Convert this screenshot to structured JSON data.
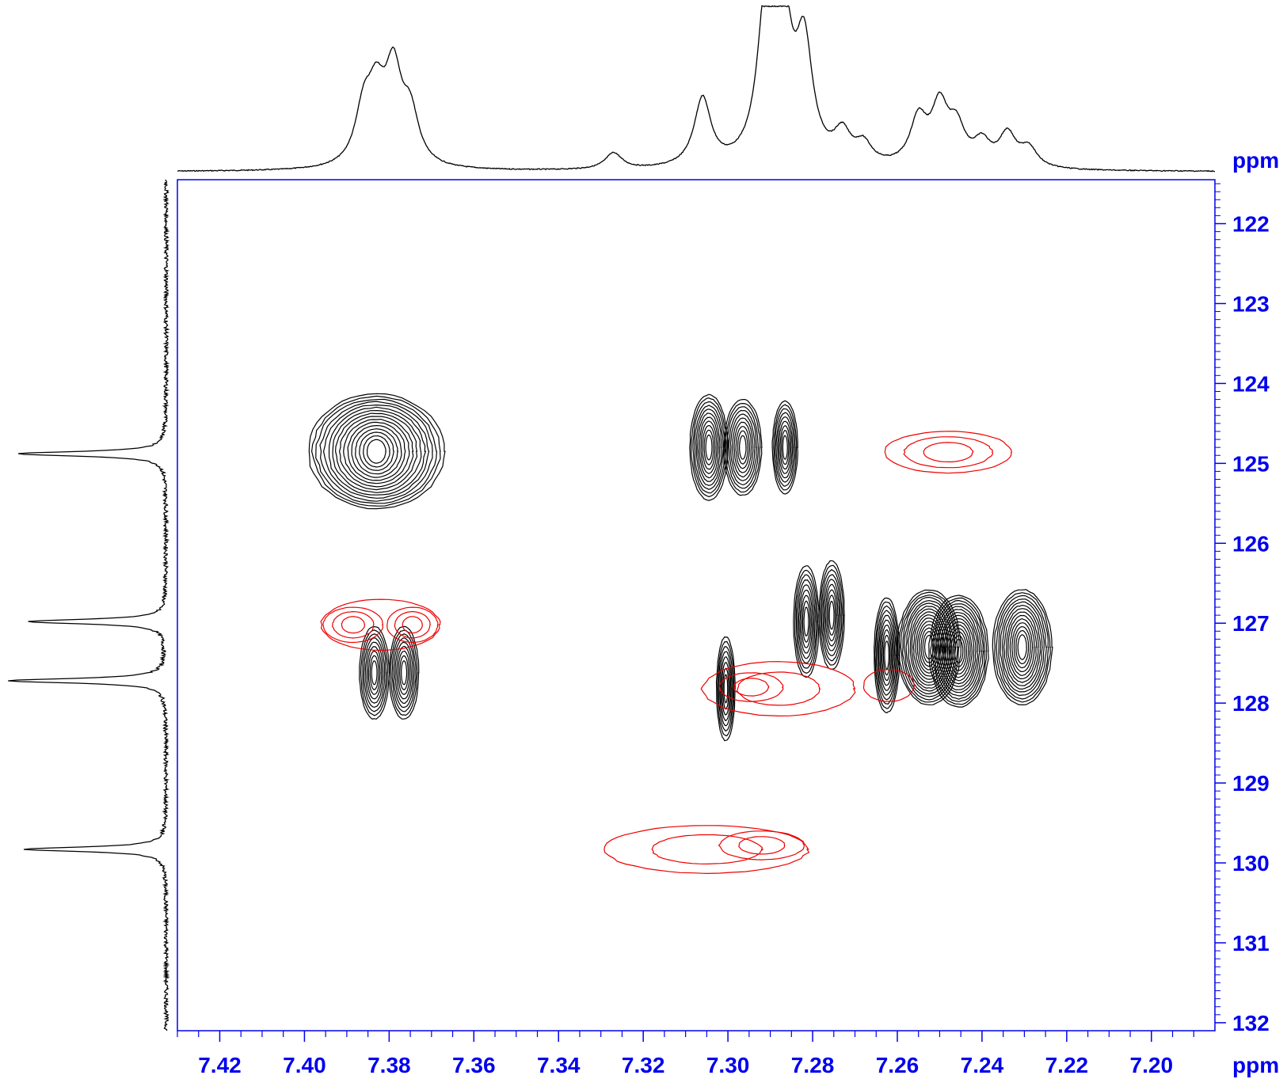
{
  "chart_data": {
    "type": "contour",
    "title": "",
    "x_axis": {
      "label": "ppm",
      "range": [
        7.43,
        7.185
      ],
      "reversed": true,
      "major_ticks": [
        7.42,
        7.4,
        7.38,
        7.36,
        7.34,
        7.32,
        7.3,
        7.28,
        7.26,
        7.24,
        7.22,
        7.2
      ],
      "tick_labels": [
        "7.42",
        "7.40",
        "7.38",
        "7.36",
        "7.34",
        "7.32",
        "7.30",
        "7.28",
        "7.26",
        "7.24",
        "7.22",
        "7.20"
      ]
    },
    "y_axis": {
      "label": "ppm",
      "range": [
        121.45,
        132.1
      ],
      "reversed": true,
      "position": "right",
      "major_ticks": [
        122,
        123,
        124,
        125,
        126,
        127,
        128,
        129,
        130,
        131,
        132
      ],
      "tick_labels": [
        "122",
        "123",
        "124",
        "125",
        "126",
        "127",
        "128",
        "129",
        "130",
        "131",
        "132"
      ]
    },
    "colors": {
      "axis": "#0000ee",
      "positive": "#000000",
      "negative": "#ee0000"
    },
    "f2_projection_peaks": [
      {
        "ppm": 7.386,
        "height": 0.32
      },
      {
        "ppm": 7.383,
        "height": 0.38
      },
      {
        "ppm": 7.379,
        "height": 0.55
      },
      {
        "ppm": 7.375,
        "height": 0.3
      },
      {
        "ppm": 7.327,
        "height": 0.1
      },
      {
        "ppm": 7.306,
        "height": 0.42
      },
      {
        "ppm": 7.291,
        "height": 0.95
      },
      {
        "ppm": 7.287,
        "height": 0.85
      },
      {
        "ppm": 7.282,
        "height": 0.7
      },
      {
        "ppm": 7.273,
        "height": 0.18
      },
      {
        "ppm": 7.268,
        "height": 0.12
      },
      {
        "ppm": 7.255,
        "height": 0.28
      },
      {
        "ppm": 7.25,
        "height": 0.35
      },
      {
        "ppm": 7.246,
        "height": 0.22
      },
      {
        "ppm": 7.24,
        "height": 0.14
      },
      {
        "ppm": 7.234,
        "height": 0.2
      },
      {
        "ppm": 7.229,
        "height": 0.12
      }
    ],
    "f1_projection_peaks": [
      {
        "ppm": 124.88,
        "height": 0.95
      },
      {
        "ppm": 126.98,
        "height": 0.88
      },
      {
        "ppm": 127.72,
        "height": 1.0
      },
      {
        "ppm": 129.83,
        "height": 0.9
      }
    ],
    "positive_peaks": [
      {
        "x": 7.383,
        "y": 124.85,
        "rx": 0.016,
        "ry": 0.72,
        "levels": 16
      },
      {
        "x": 7.3835,
        "y": 127.62,
        "rx": 0.0035,
        "ry": 0.58,
        "levels": 9
      },
      {
        "x": 7.3765,
        "y": 127.62,
        "rx": 0.0035,
        "ry": 0.58,
        "levels": 9
      },
      {
        "x": 7.3045,
        "y": 124.8,
        "rx": 0.0045,
        "ry": 0.66,
        "levels": 11
      },
      {
        "x": 7.2965,
        "y": 124.8,
        "rx": 0.0045,
        "ry": 0.6,
        "levels": 10
      },
      {
        "x": 7.2865,
        "y": 124.8,
        "rx": 0.003,
        "ry": 0.58,
        "levels": 9
      },
      {
        "x": 7.3005,
        "y": 127.82,
        "rx": 0.0022,
        "ry": 0.65,
        "levels": 8
      },
      {
        "x": 7.2815,
        "y": 126.98,
        "rx": 0.003,
        "ry": 0.7,
        "levels": 9
      },
      {
        "x": 7.2755,
        "y": 126.9,
        "rx": 0.003,
        "ry": 0.68,
        "levels": 9
      },
      {
        "x": 7.2625,
        "y": 127.4,
        "rx": 0.003,
        "ry": 0.72,
        "levels": 10
      },
      {
        "x": 7.2525,
        "y": 127.3,
        "rx": 0.0075,
        "ry": 0.72,
        "levels": 16
      },
      {
        "x": 7.2455,
        "y": 127.35,
        "rx": 0.007,
        "ry": 0.7,
        "levels": 15
      },
      {
        "x": 7.2305,
        "y": 127.3,
        "rx": 0.007,
        "ry": 0.72,
        "levels": 14
      }
    ],
    "negative_peaks": [
      {
        "x": 7.248,
        "y": 124.86,
        "rx": 0.015,
        "ry": 0.26,
        "levels": 3
      },
      {
        "x": 7.3885,
        "y": 127.02,
        "rx": 0.007,
        "ry": 0.22,
        "levels": 3
      },
      {
        "x": 7.3745,
        "y": 127.02,
        "rx": 0.006,
        "ry": 0.22,
        "levels": 3
      },
      {
        "x": 7.382,
        "y": 127.02,
        "rx": 0.014,
        "ry": 0.32,
        "levels": 1
      },
      {
        "x": 7.2945,
        "y": 127.8,
        "rx": 0.0075,
        "ry": 0.18,
        "levels": 2
      },
      {
        "x": 7.288,
        "y": 127.82,
        "rx": 0.018,
        "ry": 0.34,
        "levels": 2
      },
      {
        "x": 7.262,
        "y": 127.78,
        "rx": 0.006,
        "ry": 0.2,
        "levels": 1
      },
      {
        "x": 7.292,
        "y": 129.78,
        "rx": 0.01,
        "ry": 0.18,
        "levels": 2
      },
      {
        "x": 7.305,
        "y": 129.83,
        "rx": 0.024,
        "ry": 0.3,
        "levels": 2
      }
    ]
  }
}
